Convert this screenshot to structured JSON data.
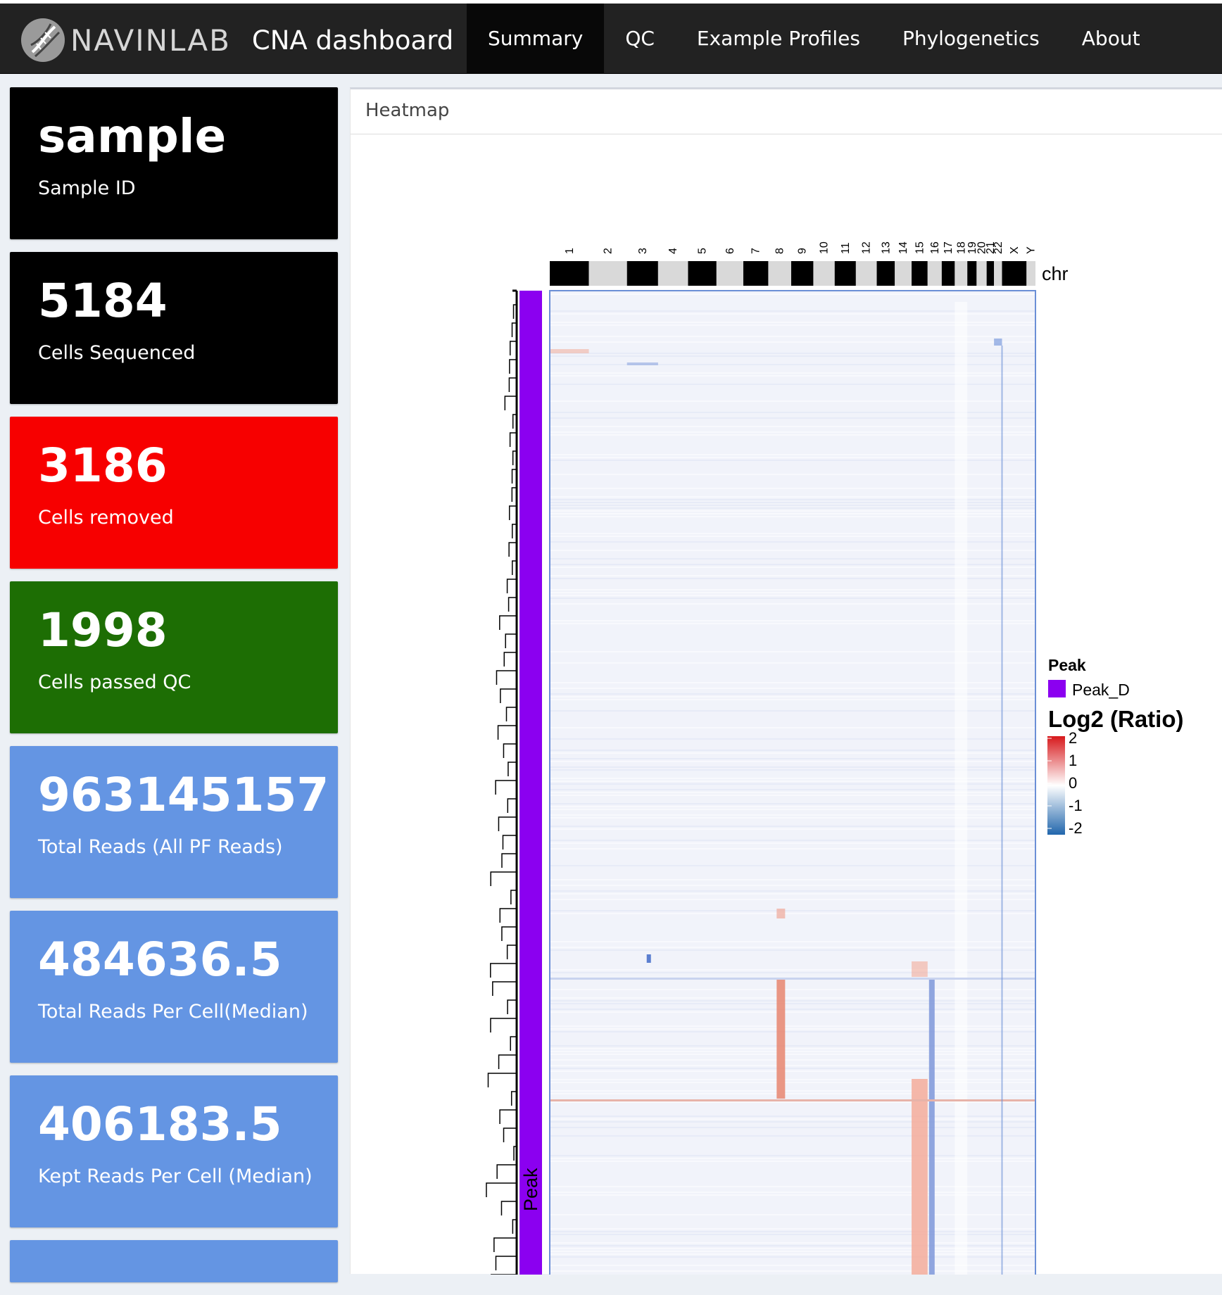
{
  "navbar": {
    "logo_icon": "dna-helix-icon",
    "brand_name": "NAVINLAB",
    "app_title": "CNA dashboard",
    "tabs": [
      {
        "label": "Summary",
        "active": true
      },
      {
        "label": "QC",
        "active": false
      },
      {
        "label": "Example Profiles",
        "active": false
      },
      {
        "label": "Phylogenetics",
        "active": false
      },
      {
        "label": "About",
        "active": false
      }
    ]
  },
  "value_boxes": [
    {
      "value": "sample",
      "label": "Sample ID",
      "color": "#000000"
    },
    {
      "value": "5184",
      "label": "Cells Sequenced",
      "color": "#000000"
    },
    {
      "value": "3186",
      "label": "Cells removed",
      "color": "#f70000"
    },
    {
      "value": "1998",
      "label": "Cells passed QC",
      "color": "#1d6e04"
    },
    {
      "value": "963145157",
      "label": "Total Reads (All PF Reads)",
      "color": "#6495e3"
    },
    {
      "value": "484636.5",
      "label": "Total Reads Per Cell(Median)",
      "color": "#6495e3"
    },
    {
      "value": "406183.5",
      "label": "Kept Reads Per Cell (Median)",
      "color": "#6495e3"
    }
  ],
  "heatmap": {
    "panel_title": "Heatmap",
    "chr_labels": [
      "1",
      "2",
      "3",
      "4",
      "5",
      "6",
      "7",
      "8",
      "9",
      "10",
      "11",
      "12",
      "13",
      "14",
      "15",
      "16",
      "17",
      "18",
      "19",
      "20",
      "21",
      "22",
      "X",
      "Y"
    ],
    "chr_track_title": "chr",
    "row_annotation_title": "Peak",
    "legend_peak_title": "Peak",
    "legend_peak_items": [
      {
        "label": "Peak_D",
        "color": "#8b00f0"
      }
    ],
    "legend_scale_title": "Log2 (Ratio)",
    "legend_scale_ticks": [
      "2",
      "1",
      "0",
      "-1",
      "-2"
    ],
    "colors": {
      "high": "#d7191c",
      "mid": "#ffffff",
      "low": "#2166ac"
    }
  }
}
